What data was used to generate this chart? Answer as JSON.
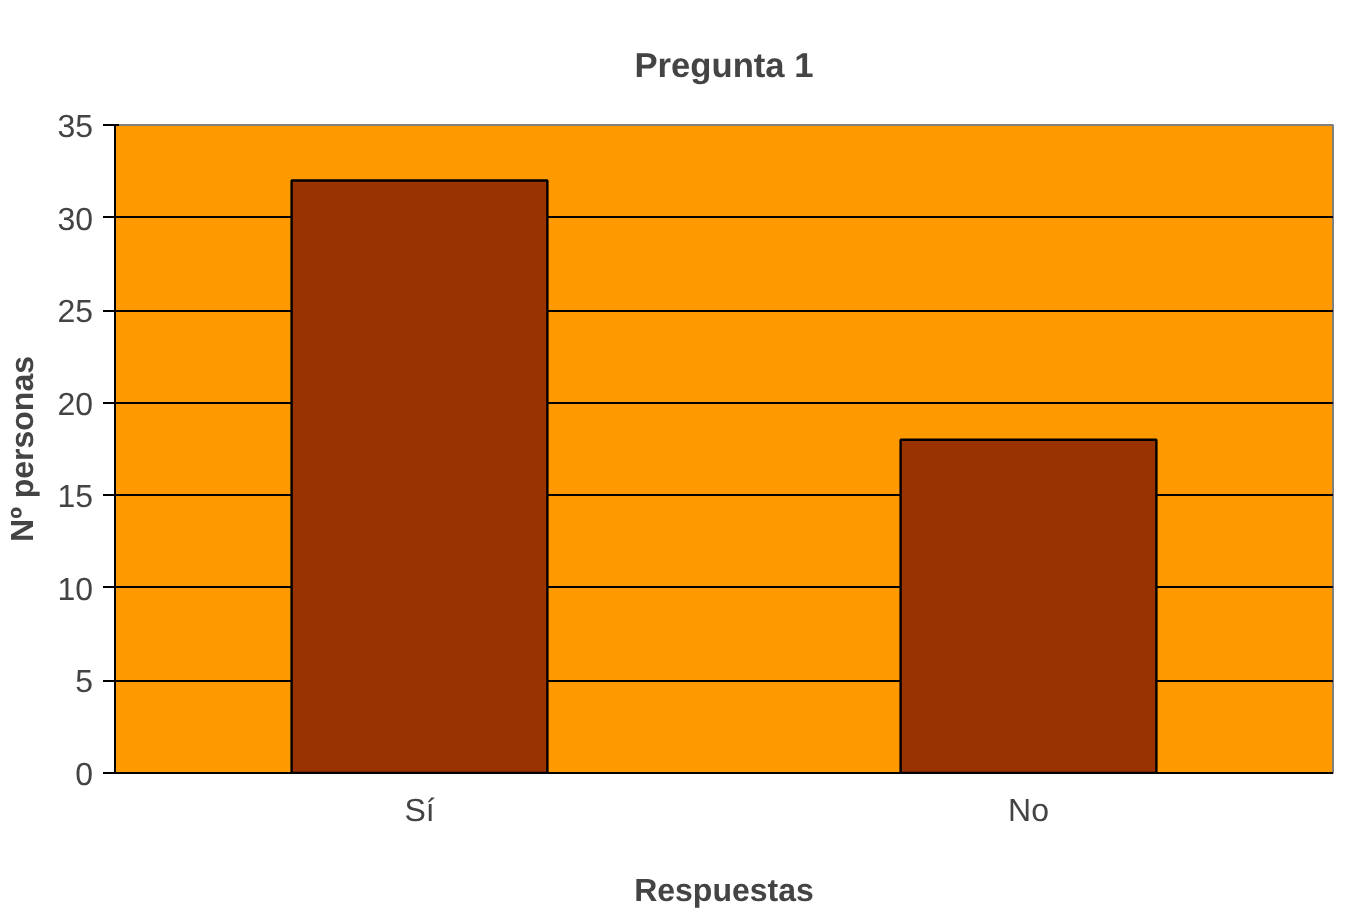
{
  "chart_data": {
    "type": "bar",
    "title": "Pregunta 1",
    "xlabel": "Respuestas",
    "ylabel": "Nº personas",
    "categories": [
      "Sí",
      "No"
    ],
    "values": [
      32,
      18
    ],
    "color": "#993300",
    "ylim": [
      0,
      35
    ],
    "yticks": [
      0,
      5,
      10,
      15,
      20,
      25,
      30,
      35
    ],
    "grid": "y"
  }
}
